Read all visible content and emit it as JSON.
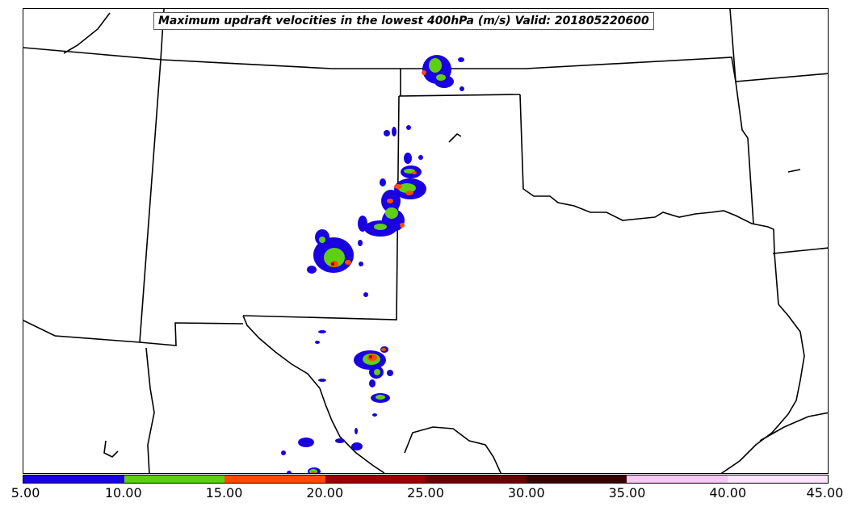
{
  "title": "Maximum updraft velocities in the lowest 400hPa (m/s) Valid: 201805220600",
  "colorbar": {
    "colors": [
      "#1a00e0",
      "#5fcf14",
      "#ff4a00",
      "#9c0000",
      "#6a0000",
      "#3a0000",
      "#f8c8f4",
      "#fde6fb"
    ],
    "ticks": [
      "5.00",
      "10.00",
      "15.00",
      "20.00",
      "25.00",
      "30.00",
      "35.00",
      "40.00",
      "45.00"
    ]
  }
}
